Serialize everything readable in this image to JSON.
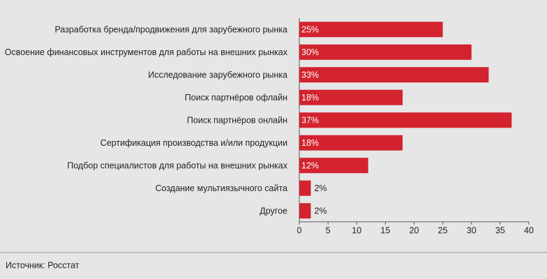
{
  "chart_data": {
    "type": "barh",
    "categories": [
      "Разработка бренда/продвижения для зарубежного рынка",
      "Освоение финансовых инструментов для работы на внешних рынках",
      "Исследование зарубежного рынка",
      "Поиск партнёров офлайн",
      "Поиск партнёров онлайн",
      "Сертификация производства и/или продукции",
      "Подбор специалистов для работы на внешних рынках",
      "Создание мультиязычного сайта",
      "Другое"
    ],
    "values": [
      25,
      30,
      33,
      18,
      37,
      18,
      12,
      2,
      2
    ],
    "value_labels": [
      "25%",
      "30%",
      "33%",
      "18%",
      "37%",
      "18%",
      "12%",
      "2%",
      "2%"
    ],
    "color": "#d2232e",
    "xlim": [
      0,
      40
    ],
    "xticks": [
      0,
      5,
      10,
      15,
      20,
      25,
      30,
      35,
      40
    ],
    "source": "Источник: Росстат"
  }
}
